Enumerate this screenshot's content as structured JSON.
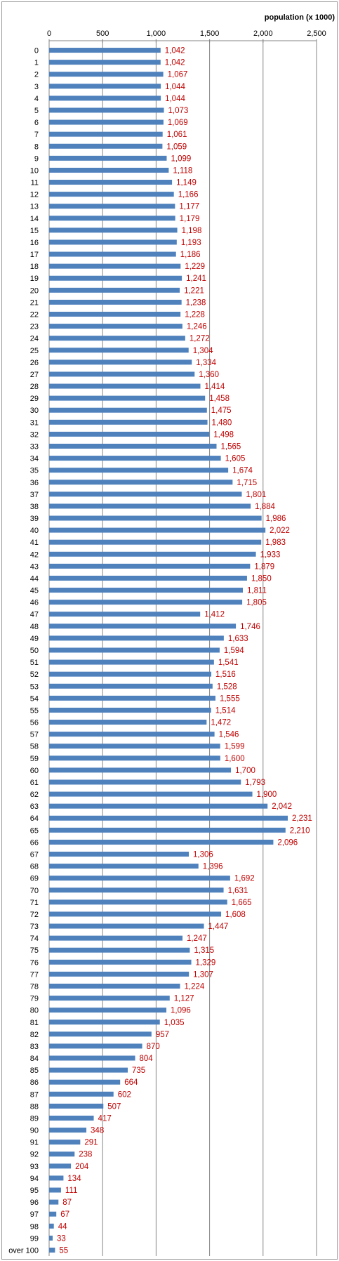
{
  "chart_data": {
    "type": "bar",
    "orientation": "horizontal",
    "unit_label": "population (x 1000)",
    "xlim": [
      0,
      2500
    ],
    "x_ticks": [
      "0",
      "500",
      "1,000",
      "1,500",
      "2,000",
      "2,500"
    ],
    "grid": "vertical",
    "bar_color": "#4f81bd",
    "label_color": "#c00000",
    "categories": [
      "0",
      "1",
      "2",
      "3",
      "4",
      "5",
      "6",
      "7",
      "8",
      "9",
      "10",
      "11",
      "12",
      "13",
      "14",
      "15",
      "16",
      "17",
      "18",
      "19",
      "20",
      "21",
      "22",
      "23",
      "24",
      "25",
      "26",
      "27",
      "28",
      "29",
      "30",
      "31",
      "32",
      "33",
      "34",
      "35",
      "36",
      "37",
      "38",
      "39",
      "40",
      "41",
      "42",
      "43",
      "44",
      "45",
      "46",
      "47",
      "48",
      "49",
      "50",
      "51",
      "52",
      "53",
      "54",
      "55",
      "56",
      "57",
      "58",
      "59",
      "60",
      "61",
      "62",
      "63",
      "64",
      "65",
      "66",
      "67",
      "68",
      "69",
      "70",
      "71",
      "72",
      "73",
      "74",
      "75",
      "76",
      "77",
      "78",
      "79",
      "80",
      "81",
      "82",
      "83",
      "84",
      "85",
      "86",
      "87",
      "88",
      "89",
      "90",
      "91",
      "92",
      "93",
      "94",
      "95",
      "96",
      "97",
      "98",
      "99",
      "over 100"
    ],
    "values": [
      1042,
      1042,
      1067,
      1044,
      1044,
      1073,
      1069,
      1061,
      1059,
      1099,
      1118,
      1149,
      1166,
      1177,
      1179,
      1198,
      1193,
      1186,
      1229,
      1241,
      1221,
      1238,
      1228,
      1246,
      1272,
      1304,
      1334,
      1360,
      1414,
      1458,
      1475,
      1480,
      1498,
      1565,
      1605,
      1674,
      1715,
      1801,
      1884,
      1986,
      2022,
      1983,
      1933,
      1879,
      1850,
      1811,
      1805,
      1412,
      1746,
      1633,
      1594,
      1541,
      1516,
      1528,
      1555,
      1514,
      1472,
      1546,
      1599,
      1600,
      1700,
      1793,
      1900,
      2042,
      2231,
      2210,
      2096,
      1306,
      1396,
      1692,
      1631,
      1665,
      1608,
      1447,
      1247,
      1315,
      1329,
      1307,
      1224,
      1127,
      1096,
      1035,
      957,
      870,
      804,
      735,
      664,
      602,
      507,
      417,
      348,
      291,
      238,
      204,
      134,
      111,
      87,
      67,
      44,
      33,
      55
    ],
    "value_labels": [
      "1,042",
      "1,042",
      "1,067",
      "1,044",
      "1,044",
      "1,073",
      "1,069",
      "1,061",
      "1,059",
      "1,099",
      "1,118",
      "1,149",
      "1,166",
      "1,177",
      "1,179",
      "1,198",
      "1,193",
      "1,186",
      "1,229",
      "1,241",
      "1,221",
      "1,238",
      "1,228",
      "1,246",
      "1,272",
      "1,304",
      "1,334",
      "1,360",
      "1,414",
      "1,458",
      "1,475",
      "1,480",
      "1,498",
      "1,565",
      "1,605",
      "1,674",
      "1,715",
      "1,801",
      "1,884",
      "1,986",
      "2,022",
      "1,983",
      "1,933",
      "1,879",
      "1,850",
      "1,811",
      "1,805",
      "1,412",
      "1,746",
      "1,633",
      "1,594",
      "1,541",
      "1,516",
      "1,528",
      "1,555",
      "1,514",
      "1,472",
      "1,546",
      "1,599",
      "1,600",
      "1,700",
      "1,793",
      "1,900",
      "2,042",
      "2,231",
      "2,210",
      "2,096",
      "1,306",
      "1,396",
      "1,692",
      "1,631",
      "1,665",
      "1,608",
      "1,447",
      "1,247",
      "1,315",
      "1,329",
      "1,307",
      "1,224",
      "1,127",
      "1,096",
      "1,035",
      "957",
      "870",
      "804",
      "735",
      "664",
      "602",
      "507",
      "417",
      "348",
      "291",
      "238",
      "204",
      "134",
      "111",
      "87",
      "67",
      "44",
      "33",
      "55"
    ]
  }
}
